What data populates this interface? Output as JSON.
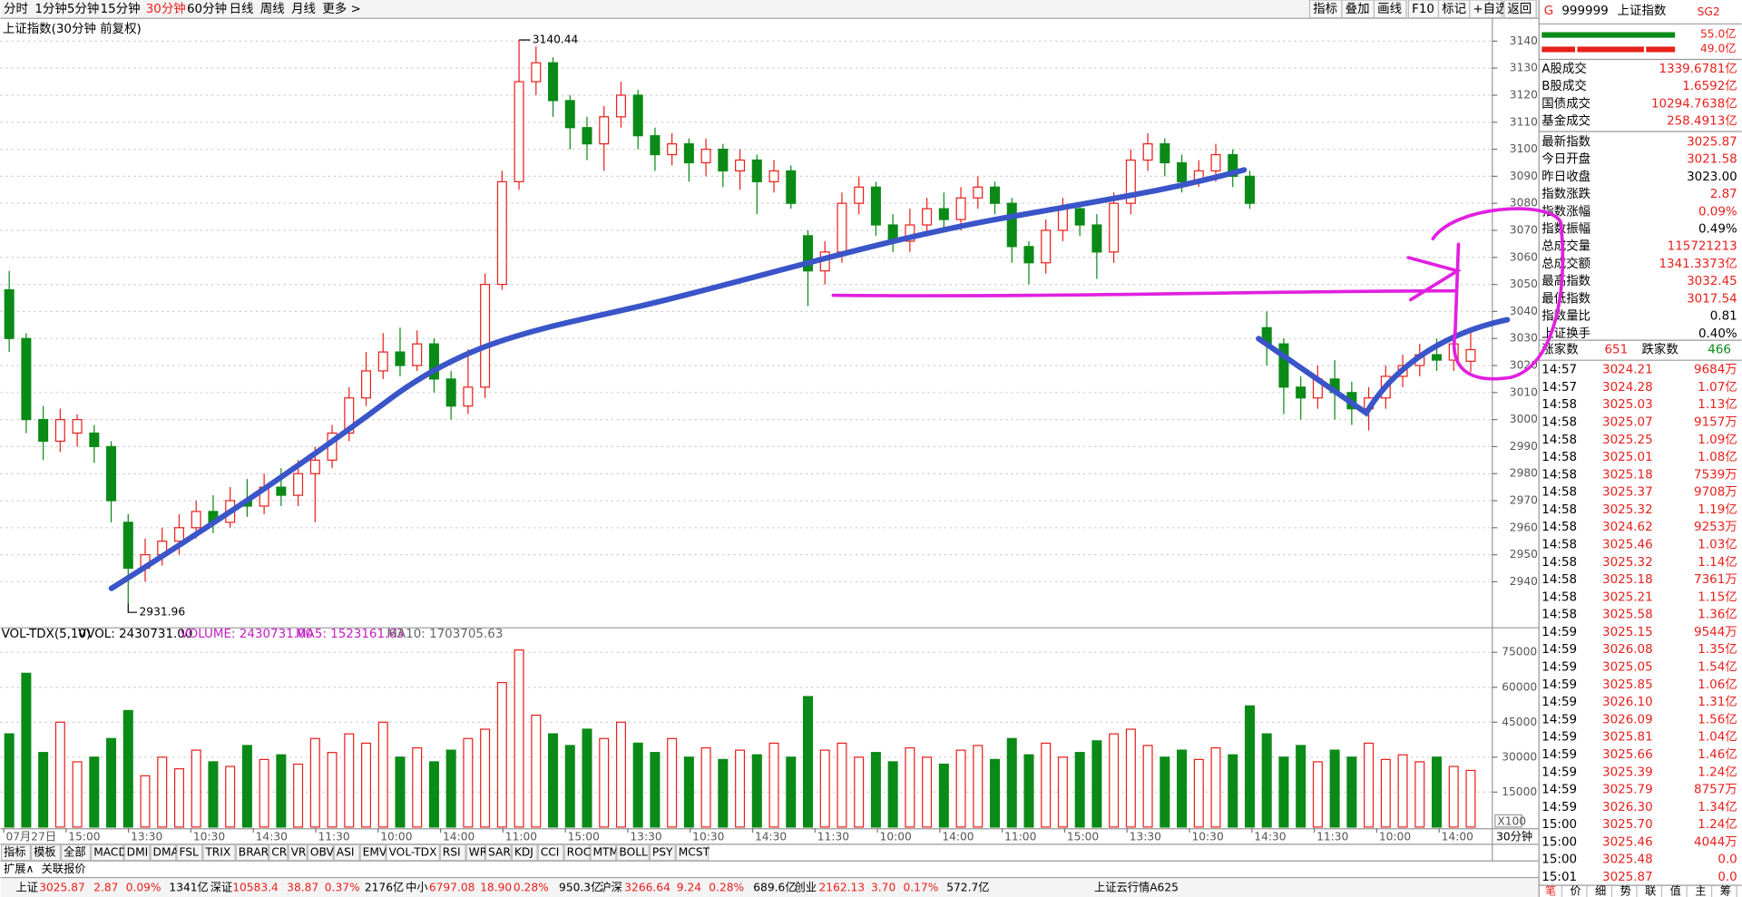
{
  "toolbar": {
    "periods": [
      "分时",
      "1分钟",
      "5分钟",
      "15分钟",
      "30分钟",
      "60分钟",
      "日线",
      "周线",
      "月线",
      "更多 >"
    ],
    "buttons": [
      "指标",
      "叠加",
      "画线",
      "F10",
      "标记",
      "+自选",
      "返回"
    ]
  },
  "chart_data": [
    {
      "type": "candlestick",
      "title": "上证指数(30分钟 前复权)",
      "up_color": "#e8201c",
      "down_color": "#0a8a16",
      "grid": true,
      "ylim": [
        2924,
        3147
      ],
      "yticks": [
        2940,
        2950,
        2960,
        2970,
        2980,
        2990,
        3000,
        3010,
        3020,
        3030,
        3040,
        3050,
        3060,
        3070,
        3080,
        3090,
        3100,
        3110,
        3120,
        3130,
        3140
      ],
      "x_tick_labels": [
        "07月27日",
        "15:00",
        "13:30",
        "10:30",
        "14:30",
        "11:30",
        "10:00",
        "14:00",
        "11:00",
        "15:00",
        "13:30",
        "10:30",
        "14:30",
        "11:30",
        "10:00",
        "14:00",
        "11:00",
        "15:00",
        "13:30",
        "10:30",
        "14:30",
        "11:30",
        "10:00",
        "14:00"
      ],
      "candles": [
        [
          3048,
          3030,
          3055,
          3025
        ],
        [
          3030,
          3000,
          3032,
          2995
        ],
        [
          3000,
          2992,
          3005,
          2985
        ],
        [
          2992,
          3000,
          3004,
          2988
        ],
        [
          2995,
          3000,
          3002,
          2990
        ],
        [
          2995,
          2990,
          2998,
          2984
        ],
        [
          2990,
          2970,
          2992,
          2962
        ],
        [
          2962,
          2945,
          2965,
          2931.96
        ],
        [
          2945,
          2950,
          2956,
          2940
        ],
        [
          2950,
          2955,
          2960,
          2946
        ],
        [
          2955,
          2960,
          2965,
          2950
        ],
        [
          2960,
          2966,
          2970,
          2956
        ],
        [
          2966,
          2962,
          2972,
          2958
        ],
        [
          2962,
          2970,
          2975,
          2960
        ],
        [
          2970,
          2968,
          2978,
          2964
        ],
        [
          2968,
          2975,
          2980,
          2965
        ],
        [
          2975,
          2972,
          2982,
          2968
        ],
        [
          2972,
          2980,
          2985,
          2968
        ],
        [
          2980,
          2985,
          2990,
          2962
        ],
        [
          2985,
          2995,
          2998,
          2982
        ],
        [
          2995,
          3008,
          3012,
          2992
        ],
        [
          3008,
          3018,
          3025,
          3005
        ],
        [
          3018,
          3025,
          3032,
          3015
        ],
        [
          3025,
          3020,
          3034,
          3016
        ],
        [
          3020,
          3028,
          3033,
          3018
        ],
        [
          3028,
          3015,
          3030,
          3010
        ],
        [
          3015,
          3005,
          3018,
          3000
        ],
        [
          3005,
          3012,
          3026,
          3002
        ],
        [
          3012,
          3050,
          3054,
          3008
        ],
        [
          3050,
          3088,
          3092,
          3048
        ],
        [
          3088,
          3125,
          3140.44,
          3085
        ],
        [
          3125,
          3132,
          3138,
          3120
        ],
        [
          3132,
          3118,
          3134,
          3112
        ],
        [
          3118,
          3108,
          3120,
          3100
        ],
        [
          3108,
          3102,
          3112,
          3096
        ],
        [
          3102,
          3112,
          3116,
          3092
        ],
        [
          3112,
          3120,
          3125,
          3108
        ],
        [
          3120,
          3105,
          3122,
          3100
        ],
        [
          3105,
          3098,
          3108,
          3092
        ],
        [
          3098,
          3102,
          3106,
          3094
        ],
        [
          3102,
          3095,
          3104,
          3088
        ],
        [
          3095,
          3100,
          3104,
          3090
        ],
        [
          3100,
          3092,
          3102,
          3086
        ],
        [
          3092,
          3096,
          3100,
          3085
        ],
        [
          3096,
          3088,
          3098,
          3076
        ],
        [
          3088,
          3092,
          3096,
          3084
        ],
        [
          3092,
          3080,
          3094,
          3078
        ],
        [
          3068,
          3055,
          3070,
          3042
        ],
        [
          3055,
          3062,
          3066,
          3050
        ],
        [
          3062,
          3080,
          3084,
          3058
        ],
        [
          3080,
          3086,
          3090,
          3076
        ],
        [
          3086,
          3072,
          3088,
          3068
        ],
        [
          3072,
          3066,
          3076,
          3062
        ],
        [
          3066,
          3072,
          3078,
          3062
        ],
        [
          3072,
          3078,
          3082,
          3068
        ],
        [
          3078,
          3074,
          3084,
          3070
        ],
        [
          3074,
          3082,
          3086,
          3070
        ],
        [
          3082,
          3086,
          3090,
          3078
        ],
        [
          3086,
          3080,
          3088,
          3076
        ],
        [
          3080,
          3064,
          3082,
          3058
        ],
        [
          3064,
          3058,
          3066,
          3050
        ],
        [
          3058,
          3070,
          3074,
          3054
        ],
        [
          3070,
          3078,
          3082,
          3066
        ],
        [
          3078,
          3072,
          3080,
          3068
        ],
        [
          3072,
          3062,
          3076,
          3052
        ],
        [
          3062,
          3080,
          3084,
          3058
        ],
        [
          3080,
          3096,
          3100,
          3076
        ],
        [
          3096,
          3102,
          3106,
          3092
        ],
        [
          3102,
          3095,
          3104,
          3090
        ],
        [
          3095,
          3088,
          3098,
          3084
        ],
        [
          3088,
          3092,
          3096,
          3086
        ],
        [
          3092,
          3098,
          3102,
          3088
        ],
        [
          3098,
          3090,
          3100,
          3086
        ],
        [
          3090,
          3080,
          3092,
          3078
        ],
        [
          3034,
          3028,
          3040,
          3020
        ],
        [
          3028,
          3012,
          3030,
          3002
        ],
        [
          3012,
          3008,
          3016,
          3000
        ],
        [
          3008,
          3015,
          3020,
          3004
        ],
        [
          3015,
          3010,
          3022,
          3000
        ],
        [
          3010,
          3004,
          3014,
          2998
        ],
        [
          3004,
          3008,
          3012,
          2996
        ],
        [
          3008,
          3016,
          3020,
          3004
        ],
        [
          3016,
          3020,
          3024,
          3012
        ],
        [
          3020,
          3024,
          3028,
          3016
        ],
        [
          3024,
          3022,
          3030,
          3018
        ],
        [
          3022,
          3028,
          3032,
          3018
        ],
        [
          3021.58,
          3025.87,
          3032.45,
          3017.54
        ]
      ]
    },
    {
      "type": "bar",
      "title": "VOL-TDX(5,10)",
      "header": [
        "VVOL: 2430731.00",
        "VOLUME: 2430731.00",
        "MA5: 1523161.63",
        "MA10: 1703705.63"
      ],
      "scale_label": "X100",
      "ylim": [
        0,
        81000
      ],
      "yticks": [
        15000,
        30000,
        45000,
        60000,
        75000
      ],
      "values": [
        40000,
        66000,
        32000,
        45000,
        28000,
        30000,
        38000,
        50000,
        22000,
        30000,
        25000,
        33000,
        28000,
        26000,
        35000,
        29000,
        31000,
        27000,
        38000,
        32000,
        40000,
        36000,
        45000,
        30000,
        34000,
        28000,
        33000,
        38000,
        42000,
        62000,
        76000,
        48000,
        40000,
        35000,
        42000,
        38000,
        45000,
        36000,
        32000,
        38000,
        30000,
        34000,
        29000,
        33000,
        31000,
        36000,
        30000,
        56000,
        33000,
        36000,
        30000,
        32000,
        28000,
        34000,
        30000,
        27000,
        33000,
        35000,
        29000,
        38000,
        31000,
        36000,
        30000,
        32000,
        37000,
        40000,
        42000,
        35000,
        30000,
        33000,
        29000,
        34000,
        31000,
        52000,
        40000,
        30000,
        35000,
        28000,
        33000,
        30000,
        36000,
        29000,
        31000,
        28000,
        30000,
        26000,
        24307
      ]
    }
  ],
  "period_label": "30分钟",
  "indicators": [
    "指标",
    "模板",
    "全部",
    "MACD",
    "DMI",
    "DMA",
    "FSL",
    "TRIX",
    "BRAR",
    "CR",
    "VR",
    "OBV",
    "ASI",
    "EMV",
    "VOL-TDX",
    "RSI",
    "WR",
    "SAR",
    "KDJ",
    "CCI",
    "ROC",
    "MTM",
    "BOLL",
    "PSY",
    "MCST"
  ],
  "extra_tabs": [
    "扩展∧",
    "关联报价"
  ],
  "panel": {
    "code": "999999",
    "name": "上证指数",
    "mark": "G",
    "tag": "SG2",
    "bar_labels": [
      "55.0亿",
      "49.0亿"
    ],
    "stats": [
      [
        "A股成交",
        "1339.6781亿"
      ],
      [
        "B股成交",
        "1.6592亿"
      ],
      [
        "国债成交",
        "10294.7638亿"
      ],
      [
        "基金成交",
        "258.4913亿"
      ],
      [
        "最新指数",
        "3025.87"
      ],
      [
        "今日开盘",
        "3021.58"
      ],
      [
        "昨日收盘",
        "3023.00"
      ],
      [
        "指数涨跌",
        "2.87"
      ],
      [
        "指数涨幅",
        "0.09%"
      ],
      [
        "指数振幅",
        "0.49%"
      ],
      [
        "总成交量",
        "115721213"
      ],
      [
        "总成交额",
        "1341.3373亿"
      ],
      [
        "最高指数",
        "3032.45"
      ],
      [
        "最低指数",
        "3017.54"
      ],
      [
        "指数量比",
        "0.81"
      ],
      [
        "上证换手",
        "0.40%"
      ]
    ],
    "breadth": [
      "涨家数",
      "651",
      "跌家数",
      "466"
    ],
    "ticks": [
      [
        "14:57",
        "3024.21",
        "9684万"
      ],
      [
        "14:57",
        "3024.28",
        "1.07亿"
      ],
      [
        "14:58",
        "3025.03",
        "1.13亿"
      ],
      [
        "14:58",
        "3025.07",
        "9157万"
      ],
      [
        "14:58",
        "3025.25",
        "1.09亿"
      ],
      [
        "14:58",
        "3025.01",
        "1.08亿"
      ],
      [
        "14:58",
        "3025.18",
        "7539万"
      ],
      [
        "14:58",
        "3025.37",
        "9708万"
      ],
      [
        "14:58",
        "3025.32",
        "1.19亿"
      ],
      [
        "14:58",
        "3024.62",
        "9253万"
      ],
      [
        "14:58",
        "3025.46",
        "1.03亿"
      ],
      [
        "14:58",
        "3025.32",
        "1.14亿"
      ],
      [
        "14:58",
        "3025.18",
        "7361万"
      ],
      [
        "14:58",
        "3025.21",
        "1.15亿"
      ],
      [
        "14:58",
        "3025.58",
        "1.36亿"
      ],
      [
        "14:59",
        "3025.15",
        "9544万"
      ],
      [
        "14:59",
        "3026.08",
        "1.35亿"
      ],
      [
        "14:59",
        "3025.05",
        "1.54亿"
      ],
      [
        "14:59",
        "3025.85",
        "1.06亿"
      ],
      [
        "14:59",
        "3026.10",
        "1.31亿"
      ],
      [
        "14:59",
        "3026.09",
        "1.56亿"
      ],
      [
        "14:59",
        "3025.81",
        "1.04亿"
      ],
      [
        "14:59",
        "3025.66",
        "1.46亿"
      ],
      [
        "14:59",
        "3025.39",
        "1.24亿"
      ],
      [
        "14:59",
        "3025.79",
        "8757万"
      ],
      [
        "14:59",
        "3026.30",
        "1.34亿"
      ],
      [
        "15:00",
        "3025.70",
        "1.24亿"
      ],
      [
        "15:00",
        "3025.46",
        "4044万"
      ],
      [
        "15:00",
        "3025.48",
        "0.0"
      ],
      [
        "15:01",
        "3025.87",
        "0.0"
      ]
    ],
    "tabs": [
      "笔",
      "价",
      "细",
      "势",
      "联",
      "值",
      "主",
      "筹"
    ]
  },
  "status_bar": [
    "上证",
    "3025.87",
    "2.87",
    "0.09%",
    "1341亿",
    "深证",
    "10583.4",
    "38.87",
    "0.37%",
    "2176亿",
    "中小",
    "6797.08",
    "18.90",
    "0.28%",
    "950.3亿",
    "沪深",
    "3266.64",
    "9.24",
    "0.28%",
    "689.6亿",
    "创业",
    "2162.13",
    "3.70",
    "0.17%",
    "572.7亿",
    "上证云行情A625"
  ]
}
